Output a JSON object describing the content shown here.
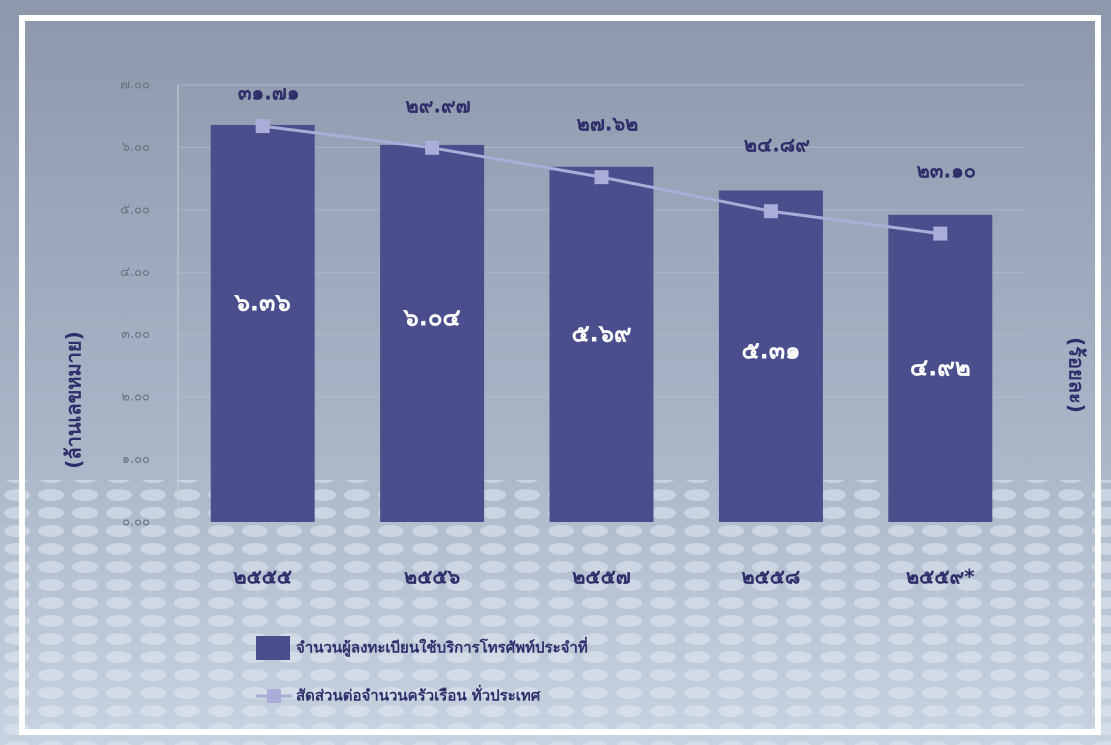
{
  "chart_data": {
    "type": "bar",
    "categories": [
      "๒๕๕๕",
      "๒๕๕๖",
      "๒๕๕๗",
      "๒๕๕๘",
      "๒๕๕๙*"
    ],
    "series": [
      {
        "name": "จำนวนผู้ลงทะเบียนใช้บริการโทรศัพท์ประจำที่",
        "type": "bar",
        "color": "#4a4e8c",
        "values": [
          6.36,
          6.04,
          5.69,
          5.31,
          4.92
        ],
        "value_labels": [
          "๖.๓๖",
          "๖.๐๔",
          "๕.๖๙",
          "๕.๓๑",
          "๔.๙๒"
        ]
      },
      {
        "name": "สัดส่วนต่อจำนวนครัวเรือน ทั่วประเทศ",
        "type": "line",
        "axis": "y2",
        "color": "#a9aed8",
        "values": [
          31.71,
          29.97,
          27.62,
          24.89,
          23.1
        ],
        "value_labels": [
          "๓๑.๗๑",
          "๒๙.๙๗",
          "๒๗.๖๒",
          "๒๔.๘๙",
          "๒๓.๑๐"
        ]
      }
    ],
    "ylabel": "(ล้านเลขหมาย)",
    "y2label": "(ร้อยละ)",
    "ylim": [
      0,
      7
    ],
    "yticks": [
      {
        "value": 0,
        "label": "๐.๐๐"
      },
      {
        "value": 1,
        "label": "๑.๐๐"
      },
      {
        "value": 2,
        "label": "๒.๐๐"
      },
      {
        "value": 3,
        "label": "๓.๐๐"
      },
      {
        "value": 4,
        "label": "๔.๐๐"
      },
      {
        "value": 5,
        "label": "๕.๐๐"
      },
      {
        "value": 6,
        "label": "๖.๐๐"
      },
      {
        "value": 7,
        "label": "๗.๐๐"
      }
    ],
    "y2lim": [
      0,
      35
    ],
    "grid": true
  }
}
